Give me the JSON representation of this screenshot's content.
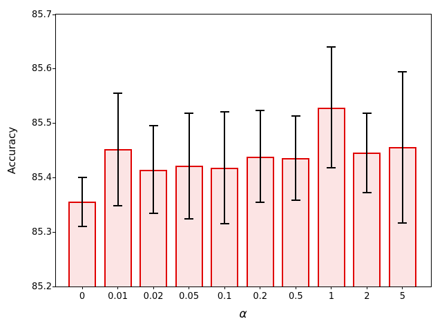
{
  "chart_data": {
    "type": "bar",
    "title": "",
    "xlabel": "α",
    "ylabel": "Accuracy",
    "categories": [
      "0",
      "0.01",
      "0.02",
      "0.05",
      "0.1",
      "0.2",
      "0.5",
      "1",
      "2",
      "5"
    ],
    "values": [
      85.356,
      85.452,
      85.415,
      85.422,
      85.418,
      85.439,
      85.436,
      85.529,
      85.446,
      85.456
    ],
    "errors": [
      0.045,
      0.103,
      0.081,
      0.097,
      0.103,
      0.084,
      0.078,
      0.111,
      0.073,
      0.139
    ],
    "ylim": [
      85.2,
      85.7
    ],
    "yticks": [
      85.2,
      85.3,
      85.4,
      85.5,
      85.6,
      85.7
    ],
    "ytick_format_decimals": 1,
    "grid": false,
    "legend": null,
    "colors": {
      "bar_fill": "#fce4e4",
      "bar_edge": "#e00000",
      "error_bar": "#000000",
      "axis": "#000000",
      "background": "#ffffff"
    }
  }
}
